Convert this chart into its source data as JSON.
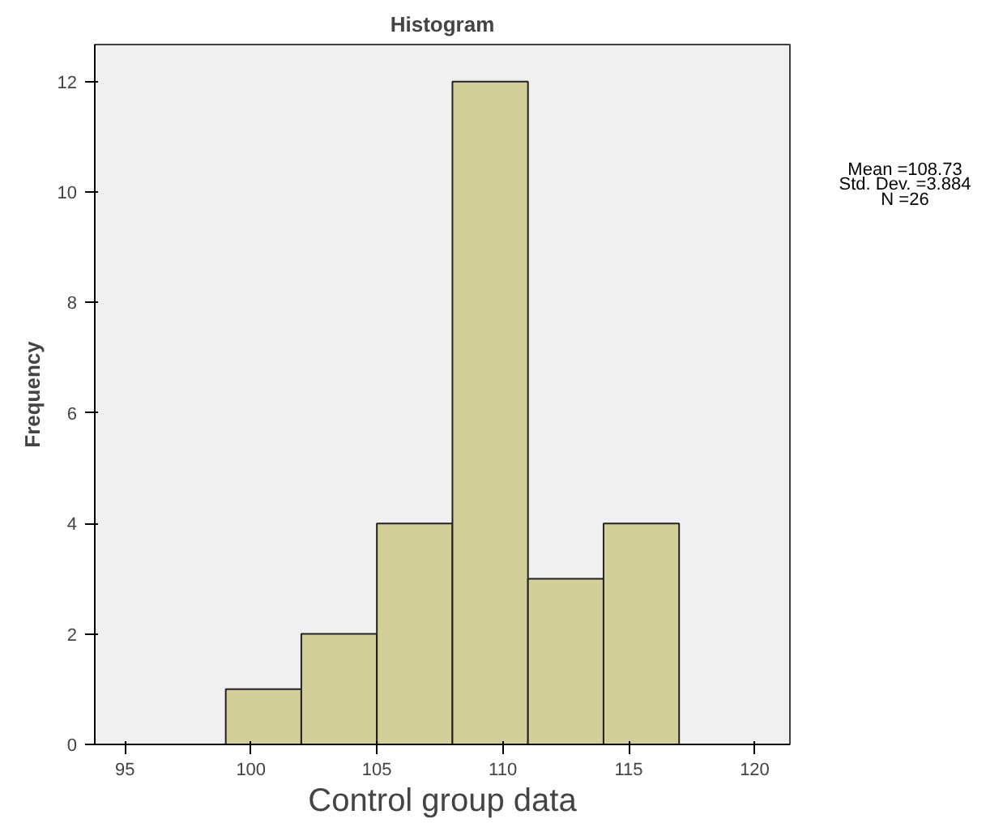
{
  "chart_data": {
    "type": "histogram",
    "title": "Histogram",
    "xlabel": "Control group data",
    "ylabel": "Frequency",
    "bins": [
      99,
      102,
      105,
      108,
      111,
      114,
      117
    ],
    "values": [
      1,
      2,
      4,
      12,
      3,
      4
    ],
    "color": "#d3cf9a",
    "xlim": [
      93.8,
      121.4
    ],
    "ylim": [
      0,
      12.67
    ],
    "xticks": [
      95,
      100,
      105,
      110,
      115,
      120
    ],
    "yticks": [
      0,
      2,
      4,
      6,
      8,
      10,
      12
    ],
    "grid": false,
    "annotations": [
      "Mean =108.73",
      "Std. Dev. =3.884",
      "N =26"
    ]
  }
}
